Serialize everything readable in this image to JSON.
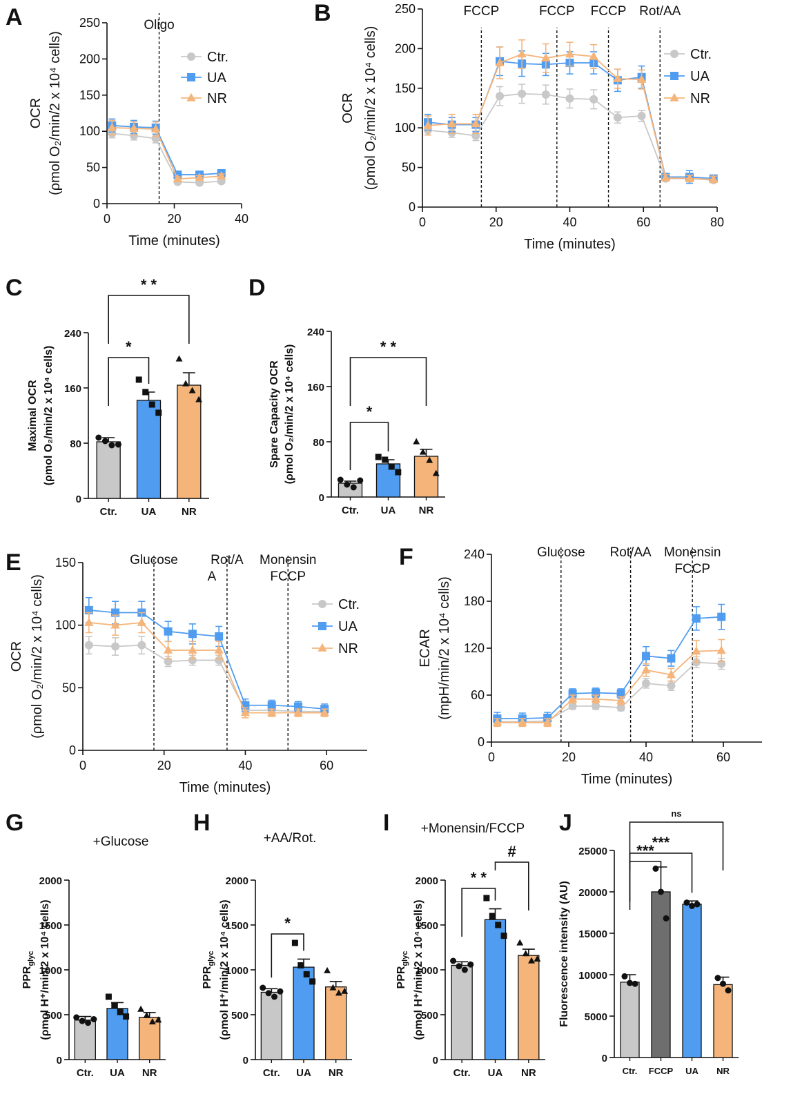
{
  "colors": {
    "ctr": "#c8c8c8",
    "ua": "#4f9cf0",
    "nr": "#f5b47a",
    "fccp": "#6e6e6e",
    "axis": "#111111"
  },
  "legend_labels": {
    "ctr": "Ctr.",
    "ua": "UA",
    "nr": "NR"
  },
  "chart_data": [
    {
      "id": "A",
      "type": "line",
      "panel_label": "A",
      "xlabel": "Time (minutes)",
      "ylabel": "OCR",
      "ylabel2": "(ρmol O₂/min/2 x 10⁴ cells)",
      "xlim": [
        0,
        40
      ],
      "ylim": [
        0,
        250
      ],
      "xticks": [
        0,
        20,
        40
      ],
      "yticks": [
        0,
        50,
        100,
        150,
        200,
        250
      ],
      "events": [
        {
          "x": 15.5,
          "label": "Oligo"
        }
      ],
      "legend": "top-right",
      "series": [
        {
          "name": "Ctr.",
          "key": "ctr",
          "x": [
            1.5,
            8,
            14.5,
            21,
            27.5,
            34
          ],
          "y": [
            97,
            94,
            90,
            30,
            29,
            31
          ],
          "err": [
            6,
            6,
            6,
            3,
            3,
            3
          ]
        },
        {
          "name": "UA",
          "key": "ua",
          "x": [
            1.5,
            8,
            14.5,
            21,
            27.5,
            34
          ],
          "y": [
            108,
            106,
            105,
            40,
            40,
            42
          ],
          "err": [
            9,
            9,
            9,
            3,
            3,
            3
          ]
        },
        {
          "name": "NR",
          "key": "nr",
          "x": [
            1.5,
            8,
            14.5,
            21,
            27.5,
            34
          ],
          "y": [
            105,
            104,
            103,
            34,
            36,
            38
          ],
          "err": [
            10,
            9,
            10,
            3,
            3,
            3
          ]
        }
      ]
    },
    {
      "id": "B",
      "type": "line",
      "panel_label": "B",
      "xlabel": "Time (minutes)",
      "ylabel": "OCR",
      "ylabel2": "(ρmol O₂/min/2 x 10⁴ cells)",
      "xlim": [
        0,
        80
      ],
      "ylim": [
        0,
        250
      ],
      "xticks": [
        0,
        20,
        40,
        60,
        80
      ],
      "yticks": [
        0,
        50,
        100,
        150,
        200,
        250
      ],
      "events": [
        {
          "x": 16,
          "label": "FCCP"
        },
        {
          "x": 36.5,
          "label": "FCCP"
        },
        {
          "x": 50.5,
          "label": "FCCP"
        },
        {
          "x": 64.5,
          "label": "Rot/AA"
        }
      ],
      "legend": "top-right",
      "series": [
        {
          "name": "Ctr.",
          "key": "ctr",
          "x": [
            1.5,
            8,
            14.5,
            21,
            27,
            33.5,
            40,
            46.5,
            53,
            59.5,
            66,
            72.5,
            79
          ],
          "y": [
            97,
            94,
            90,
            140,
            143,
            142,
            137,
            136,
            113,
            115,
            36,
            36,
            34
          ],
          "err": [
            6,
            6,
            6,
            12,
            12,
            12,
            12,
            12,
            7,
            7,
            3,
            3,
            3
          ]
        },
        {
          "name": "UA",
          "key": "ua",
          "x": [
            1.5,
            8,
            14.5,
            21,
            27,
            33.5,
            40,
            46.5,
            53,
            59.5,
            66,
            72.5,
            79
          ],
          "y": [
            107,
            104,
            104,
            184,
            181,
            180,
            182,
            182,
            160,
            164,
            38,
            38,
            36
          ],
          "err": [
            10,
            9,
            9,
            18,
            16,
            14,
            14,
            14,
            14,
            14,
            4,
            8,
            4
          ]
        },
        {
          "name": "NR",
          "key": "nr",
          "x": [
            1.5,
            8,
            14.5,
            21,
            27,
            33.5,
            40,
            46.5,
            53,
            59.5,
            66,
            72.5,
            79
          ],
          "y": [
            103,
            105,
            105,
            182,
            193,
            188,
            193,
            190,
            162,
            161,
            37,
            36,
            35
          ],
          "err": [
            12,
            12,
            12,
            20,
            18,
            18,
            15,
            15,
            12,
            12,
            4,
            4,
            4
          ]
        }
      ]
    },
    {
      "id": "C",
      "type": "bar",
      "panel_label": "C",
      "ylabel": "Maximal OCR",
      "ylabel2": "(ρmol O₂/min/2 x 10⁴ cells)",
      "categories": [
        "Ctr.",
        "UA",
        "NR"
      ],
      "keys": [
        "ctr",
        "ua",
        "nr"
      ],
      "values": [
        82,
        142,
        164
      ],
      "err": [
        6,
        12,
        18
      ],
      "points": [
        [
          88,
          83,
          77,
          78
        ],
        [
          172,
          154,
          136,
          124
        ],
        [
          202,
          166,
          156,
          143
        ]
      ],
      "markers": [
        "circle",
        "square",
        "triangle"
      ],
      "ylim": [
        0,
        240
      ],
      "yticks": [
        0,
        80,
        160,
        240
      ],
      "sig": [
        {
          "from": 0,
          "to": 1,
          "label": "*"
        },
        {
          "from": 0,
          "to": 2,
          "label": "* *"
        }
      ]
    },
    {
      "id": "D",
      "type": "bar",
      "panel_label": "D",
      "ylabel": "Spare Capacity OCR",
      "ylabel2": "(ρmol O₂/min/2 x 10⁴ cells)",
      "categories": [
        "Ctr.",
        "UA",
        "NR"
      ],
      "keys": [
        "ctr",
        "ua",
        "nr"
      ],
      "values": [
        20,
        48,
        59
      ],
      "err": [
        3,
        6,
        10
      ],
      "points": [
        [
          25,
          18,
          14,
          24
        ],
        [
          58,
          54,
          44,
          36
        ],
        [
          80,
          65,
          53,
          34
        ]
      ],
      "markers": [
        "circle",
        "square",
        "triangle"
      ],
      "ylim": [
        0,
        240
      ],
      "yticks": [
        0,
        80,
        160,
        240
      ],
      "sig": [
        {
          "from": 0,
          "to": 1,
          "label": "*"
        },
        {
          "from": 0,
          "to": 2,
          "label": "* *"
        }
      ]
    },
    {
      "id": "E",
      "type": "line",
      "panel_label": "E",
      "xlabel": "Time (minutes)",
      "ylabel": "OCR",
      "ylabel2": "(ρmol O₂/min/2 x 10⁴ cells)",
      "xlim": [
        0,
        70
      ],
      "ylim": [
        0,
        150
      ],
      "xticks": [
        0,
        20,
        40,
        60
      ],
      "yticks": [
        0,
        50,
        100,
        150
      ],
      "events": [
        {
          "x": 17.5,
          "label": "Glucose"
        },
        {
          "x": 35.5,
          "label": "Rot/A",
          "label2": "A"
        },
        {
          "x": 50.5,
          "label": "Monensin",
          "label2": "FCCP"
        }
      ],
      "legend": "right",
      "series": [
        {
          "name": "Ctr.",
          "key": "ctr",
          "x": [
            1.5,
            8,
            14.5,
            21,
            27,
            33.5,
            40,
            46.5,
            53,
            59.5
          ],
          "y": [
            84,
            83,
            84,
            71,
            72,
            72,
            32,
            32,
            31,
            31
          ],
          "err": [
            7,
            7,
            7,
            4,
            4,
            4,
            3,
            3,
            3,
            3
          ]
        },
        {
          "name": "UA",
          "key": "ua",
          "x": [
            1.5,
            8,
            14.5,
            21,
            27,
            33.5,
            40,
            46.5,
            53,
            59.5
          ],
          "y": [
            112,
            110,
            110,
            95,
            93,
            91,
            36,
            36,
            35,
            33
          ],
          "err": [
            10,
            9,
            9,
            8,
            8,
            8,
            5,
            4,
            4,
            4
          ]
        },
        {
          "name": "NR",
          "key": "nr",
          "x": [
            1.5,
            8,
            14.5,
            21,
            27,
            33.5,
            40,
            46.5,
            53,
            59.5
          ],
          "y": [
            102,
            100,
            102,
            80,
            80,
            80,
            30,
            30,
            30,
            30
          ],
          "err": [
            8,
            8,
            8,
            7,
            7,
            7,
            4,
            3,
            3,
            3
          ]
        }
      ]
    },
    {
      "id": "F",
      "type": "line",
      "panel_label": "F",
      "xlabel": "Time (minutes)",
      "ylabel": "ECAR",
      "ylabel2": "(mpH/min/2 x 10⁴ cells)",
      "xlim": [
        0,
        70
      ],
      "ylim": [
        0,
        240
      ],
      "xticks": [
        0,
        20,
        40,
        60
      ],
      "yticks": [
        0,
        60,
        120,
        180,
        240
      ],
      "events": [
        {
          "x": 18,
          "label": "Glucose"
        },
        {
          "x": 36,
          "label": "Rot/AA"
        },
        {
          "x": 52,
          "label": "Monensin",
          "label2": "FCCP"
        }
      ],
      "legend": "none",
      "series": [
        {
          "name": "Ctr.",
          "key": "ctr",
          "x": [
            1.5,
            8,
            14.5,
            21,
            27,
            33.5,
            40,
            46.5,
            53,
            59.5
          ],
          "y": [
            26,
            26,
            27,
            46,
            46,
            44,
            75,
            72,
            102,
            100
          ],
          "err": [
            5,
            5,
            5,
            4,
            4,
            4,
            6,
            6,
            7,
            7
          ]
        },
        {
          "name": "UA",
          "key": "ua",
          "x": [
            1.5,
            8,
            14.5,
            21,
            27,
            33.5,
            40,
            46.5,
            53,
            59.5
          ],
          "y": [
            30,
            30,
            31,
            62,
            63,
            62,
            110,
            107,
            158,
            160
          ],
          "err": [
            8,
            7,
            7,
            6,
            6,
            6,
            12,
            10,
            15,
            16
          ]
        },
        {
          "name": "NR",
          "key": "nr",
          "x": [
            1.5,
            8,
            14.5,
            21,
            27,
            33.5,
            40,
            46.5,
            53,
            59.5
          ],
          "y": [
            25,
            25,
            25,
            55,
            55,
            53,
            92,
            86,
            116,
            117
          ],
          "err": [
            5,
            5,
            5,
            5,
            5,
            5,
            8,
            8,
            14,
            14
          ]
        }
      ]
    },
    {
      "id": "G",
      "type": "bar",
      "panel_label": "G",
      "subtitle": "+Glucose",
      "ylabel": "PPR",
      "ylabel_sub": "glyc",
      "ylabel2": "(ρmol H⁺/min/2 x 10⁴ cells)",
      "categories": [
        "Ctr.",
        "UA",
        "NR"
      ],
      "keys": [
        "ctr",
        "ua",
        "nr"
      ],
      "values": [
        440,
        570,
        470
      ],
      "err": [
        40,
        65,
        55
      ],
      "points": [
        [
          470,
          430,
          410,
          450
        ],
        [
          700,
          600,
          530,
          480
        ],
        [
          560,
          490,
          420,
          440
        ]
      ],
      "markers": [
        "circle",
        "square",
        "triangle"
      ],
      "ylim": [
        0,
        2000
      ],
      "yticks": [
        0,
        500,
        1000,
        1500,
        2000
      ],
      "sig": []
    },
    {
      "id": "H",
      "type": "bar",
      "panel_label": "H",
      "subtitle": "+AA/Rot.",
      "ylabel": "PPR",
      "ylabel_sub": "glyc",
      "ylabel2": "(ρmol H⁺/min/2 x 10⁴ cells)",
      "categories": [
        "Ctr.",
        "UA",
        "NR"
      ],
      "keys": [
        "ctr",
        "ua",
        "nr"
      ],
      "values": [
        750,
        1030,
        810
      ],
      "err": [
        40,
        90,
        60
      ],
      "points": [
        [
          800,
          740,
          700,
          760
        ],
        [
          1300,
          1050,
          950,
          870
        ],
        [
          990,
          800,
          740,
          760
        ]
      ],
      "markers": [
        "circle",
        "square",
        "triangle"
      ],
      "ylim": [
        0,
        2000
      ],
      "yticks": [
        0,
        500,
        1000,
        1500,
        2000
      ],
      "sig": [
        {
          "from": 0,
          "to": 1,
          "label": "*"
        }
      ]
    },
    {
      "id": "I",
      "type": "bar",
      "panel_label": "I",
      "subtitle": "+Monensin/FCCP",
      "ylabel": "PPR",
      "ylabel_sub": "glyc",
      "ylabel2": "(ρmol H⁺/min/2 x 10⁴ cells)",
      "categories": [
        "Ctr.",
        "UA",
        "NR"
      ],
      "keys": [
        "ctr",
        "ua",
        "nr"
      ],
      "values": [
        1050,
        1560,
        1160
      ],
      "err": [
        40,
        120,
        70
      ],
      "points": [
        [
          1100,
          1040,
          1000,
          1060
        ],
        [
          1800,
          1600,
          1500,
          1380
        ],
        [
          1300,
          1180,
          1100,
          1120
        ]
      ],
      "markers": [
        "circle",
        "square",
        "triangle"
      ],
      "ylim": [
        0,
        2000
      ],
      "yticks": [
        0,
        500,
        1000,
        1500,
        2000
      ],
      "sig": [
        {
          "from": 0,
          "to": 1,
          "label": "* *"
        },
        {
          "from": 1,
          "to": 2,
          "label": "#"
        }
      ]
    },
    {
      "id": "J",
      "type": "bar",
      "panel_label": "J",
      "ylabel": "Fluorescence intensity (AU)",
      "categories": [
        "Ctr.",
        "FCCP",
        "UA",
        "NR"
      ],
      "keys": [
        "ctr",
        "fccp",
        "ua",
        "nr"
      ],
      "values": [
        9100,
        20000,
        18500,
        8800
      ],
      "err": [
        900,
        3000,
        400,
        900
      ],
      "points": [
        [
          9800,
          9000,
          8900
        ],
        [
          22800,
          20000,
          16800
        ],
        [
          18700,
          18300,
          18500
        ],
        [
          9600,
          8900,
          8100
        ]
      ],
      "markers": [
        "circle",
        "circle",
        "circle",
        "circle"
      ],
      "ylim": [
        0,
        25000
      ],
      "yticks": [
        0,
        5000,
        10000,
        15000,
        20000,
        25000
      ],
      "sig": [
        {
          "from": 0,
          "to": 1,
          "label": "***"
        },
        {
          "from": 0,
          "to": 2,
          "label": "***"
        },
        {
          "from": 0,
          "to": 3,
          "label": "ns"
        }
      ]
    }
  ]
}
